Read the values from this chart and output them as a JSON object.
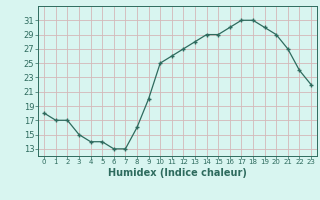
{
  "x": [
    0,
    1,
    2,
    3,
    4,
    5,
    6,
    7,
    8,
    9,
    10,
    11,
    12,
    13,
    14,
    15,
    16,
    17,
    18,
    19,
    20,
    21,
    22,
    23
  ],
  "y": [
    18,
    17,
    17,
    15,
    14,
    14,
    13,
    13,
    16,
    20,
    25,
    26,
    27,
    28,
    29,
    29,
    30,
    31,
    31,
    30,
    29,
    27,
    24,
    22
  ],
  "xlabel": "Humidex (Indice chaleur)",
  "yticks": [
    13,
    15,
    17,
    19,
    21,
    23,
    25,
    27,
    29,
    31
  ],
  "xtick_labels": [
    "0",
    "1",
    "2",
    "3",
    "4",
    "5",
    "6",
    "7",
    "8",
    "9",
    "10",
    "11",
    "12",
    "13",
    "14",
    "15",
    "16",
    "17",
    "18",
    "19",
    "20",
    "21",
    "22",
    "23"
  ],
  "ylim": [
    12,
    33
  ],
  "xlim": [
    -0.5,
    23.5
  ],
  "line_color": "#2e6b5e",
  "marker": "+",
  "bg_color": "#d8f5f0",
  "grid_color": "#d4b8b8",
  "axis_color": "#2e6b5e",
  "label_fontsize": 7,
  "tick_fontsize": 6
}
